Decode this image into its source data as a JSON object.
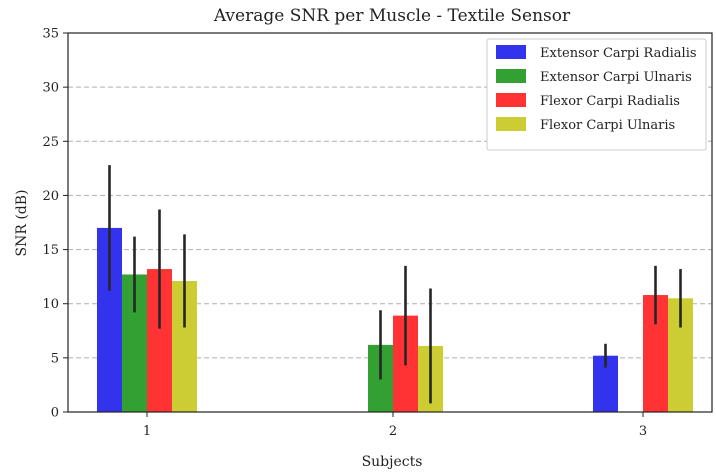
{
  "chart_data": {
    "type": "bar",
    "title": "Average SNR per Muscle - Textile Sensor",
    "xlabel": "Subjects",
    "ylabel": "SNR (dB)",
    "categories": [
      "1",
      "2",
      "3"
    ],
    "ylim": [
      0,
      35
    ],
    "yticks": [
      0,
      5,
      10,
      15,
      20,
      25,
      30,
      35
    ],
    "grid": "y-dashed",
    "legend_position": "top-right",
    "series": [
      {
        "name": "Extensor Carpi Radialis",
        "color": "#3333ee",
        "values": [
          17.0,
          null,
          5.2
        ],
        "errors": [
          5.8,
          null,
          1.1
        ]
      },
      {
        "name": "Extensor Carpi Ulnaris",
        "color": "#33a033",
        "values": [
          12.7,
          6.2,
          null
        ],
        "errors": [
          3.5,
          3.2,
          null
        ]
      },
      {
        "name": "Flexor Carpi Radialis",
        "color": "#ff3333",
        "values": [
          13.2,
          8.9,
          10.8
        ],
        "errors": [
          5.5,
          4.6,
          2.7
        ]
      },
      {
        "name": "Flexor Carpi Ulnaris",
        "color": "#cccc33",
        "values": [
          12.1,
          6.1,
          10.5
        ],
        "errors": [
          4.3,
          5.3,
          2.7
        ]
      }
    ]
  }
}
